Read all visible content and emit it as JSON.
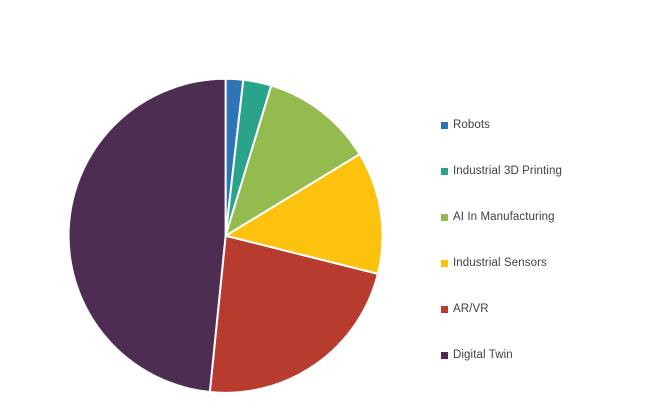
{
  "page": {
    "background_color": "#ffffff"
  },
  "chart_data": {
    "type": "pie",
    "title": "",
    "legend_position": "right",
    "grid": false,
    "start_angle_deg": 0,
    "direction": "clockwise",
    "unit": "percent",
    "categories": [
      "Robots",
      "Industrial 3D Printing",
      "AI In Manufacturing",
      "Industrial Sensors",
      "AR/VR",
      "Digital Twin"
    ],
    "values": [
      1.8,
      2.9,
      11.6,
      12.6,
      22.7,
      48.4
    ],
    "colors": [
      "#2E74B7",
      "#2AA38B",
      "#94BB4D",
      "#FCC20E",
      "#B83C2E",
      "#4E2D52"
    ],
    "slice_border_color": "#FFFFFF",
    "legend_text_color": "#404040",
    "slice_names": [
      "robots",
      "industrial-3d-printing",
      "ai-in-manufacturing",
      "industrial-sensors",
      "ar-vr",
      "digital-twin"
    ]
  }
}
